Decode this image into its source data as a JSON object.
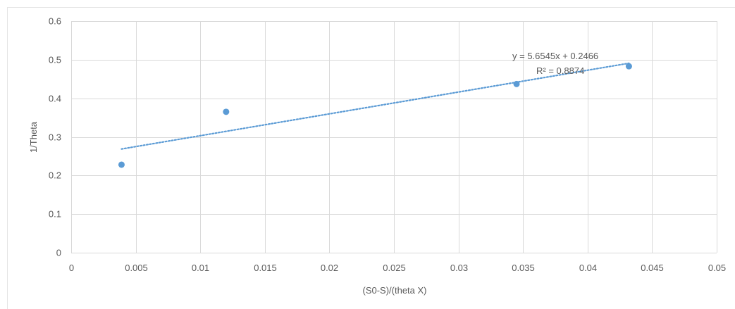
{
  "chart_data": {
    "type": "scatter",
    "title": "",
    "xlabel": "(S0-S)/(theta X)",
    "ylabel": "1/Theta",
    "xlim": [
      0,
      0.05
    ],
    "ylim": [
      0,
      0.6
    ],
    "x_ticks": [
      "0",
      "0.005",
      "0.01",
      "0.015",
      "0.02",
      "0.025",
      "0.03",
      "0.035",
      "0.04",
      "0.045",
      "0.05"
    ],
    "y_ticks": [
      "0",
      "0.1",
      "0.2",
      "0.3",
      "0.4",
      "0.5",
      "0.6"
    ],
    "x_tick_values": [
      0,
      0.005,
      0.01,
      0.015,
      0.02,
      0.025,
      0.03,
      0.035,
      0.04,
      0.045,
      0.05
    ],
    "y_tick_values": [
      0,
      0.1,
      0.2,
      0.3,
      0.4,
      0.5,
      0.6
    ],
    "grid": true,
    "series": [
      {
        "x": [
          0.0039,
          0.012,
          0.0345,
          0.0432
        ],
        "y": [
          0.228,
          0.365,
          0.437,
          0.483
        ],
        "color": "#5b9bd5"
      }
    ],
    "trendline": {
      "type": "linear",
      "slope": 5.6545,
      "intercept": 0.2466,
      "x_range": [
        0.0039,
        0.0432
      ],
      "style": "dotted",
      "color": "#5b9bd5",
      "equation_label": "y = 5.6545x + 0.2466",
      "r2_label": "R² = 0.8874"
    },
    "colors": {
      "grid": "#d9d9d9",
      "text": "#595959",
      "marker": "#5b9bd5"
    }
  }
}
